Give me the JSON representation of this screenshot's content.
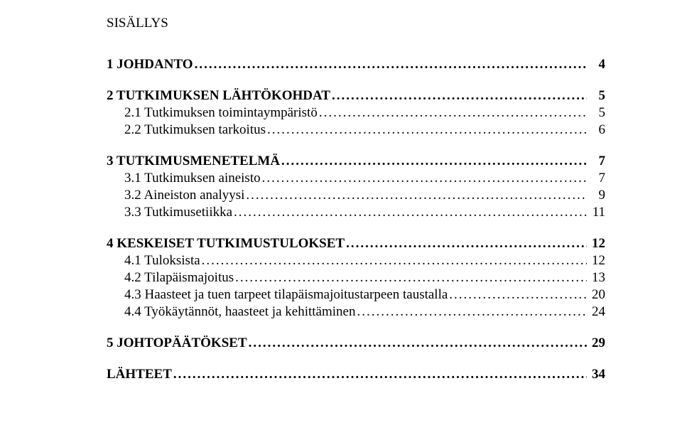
{
  "title": "SISÄLLYS",
  "leader": "..............................................................................................................................................................................................................................",
  "entries": [
    {
      "level": 0,
      "label": "1 JOHDANTO",
      "page": "4"
    },
    {
      "level": 0,
      "label": "2 TUTKIMUKSEN LÄHTÖKOHDAT",
      "page": "5"
    },
    {
      "level": 1,
      "label": "2.1 Tutkimuksen toimintaympäristö",
      "page": "5"
    },
    {
      "level": 1,
      "label": "2.2 Tutkimuksen tarkoitus",
      "page": "6"
    },
    {
      "level": 0,
      "label": "3 TUTKIMUSMENETELMÄ",
      "page": "7"
    },
    {
      "level": 1,
      "label": "3.1 Tutkimuksen aineisto",
      "page": "7"
    },
    {
      "level": 1,
      "label": "3.2 Aineiston analyysi",
      "page": "9"
    },
    {
      "level": 1,
      "label": "3.3 Tutkimusetiikka",
      "page": "11"
    },
    {
      "level": 0,
      "label": "4 KESKEISET TUTKIMUSTULOKSET",
      "page": "12"
    },
    {
      "level": 1,
      "label": "4.1 Tuloksista",
      "page": "12"
    },
    {
      "level": 1,
      "label": "4.2 Tilapäismajoitus",
      "page": "13"
    },
    {
      "level": 1,
      "label": "4.3 Haasteet ja tuen tarpeet tilapäismajoitustarpeen taustalla",
      "page": "20"
    },
    {
      "level": 1,
      "label": "4.4 Työkäytännöt, haasteet ja kehittäminen",
      "page": "24"
    },
    {
      "level": 0,
      "label": "5 JOHTOPÄÄTÖKSET",
      "page": "29"
    },
    {
      "level": 0,
      "label": "LÄHTEET",
      "page": "34"
    }
  ]
}
